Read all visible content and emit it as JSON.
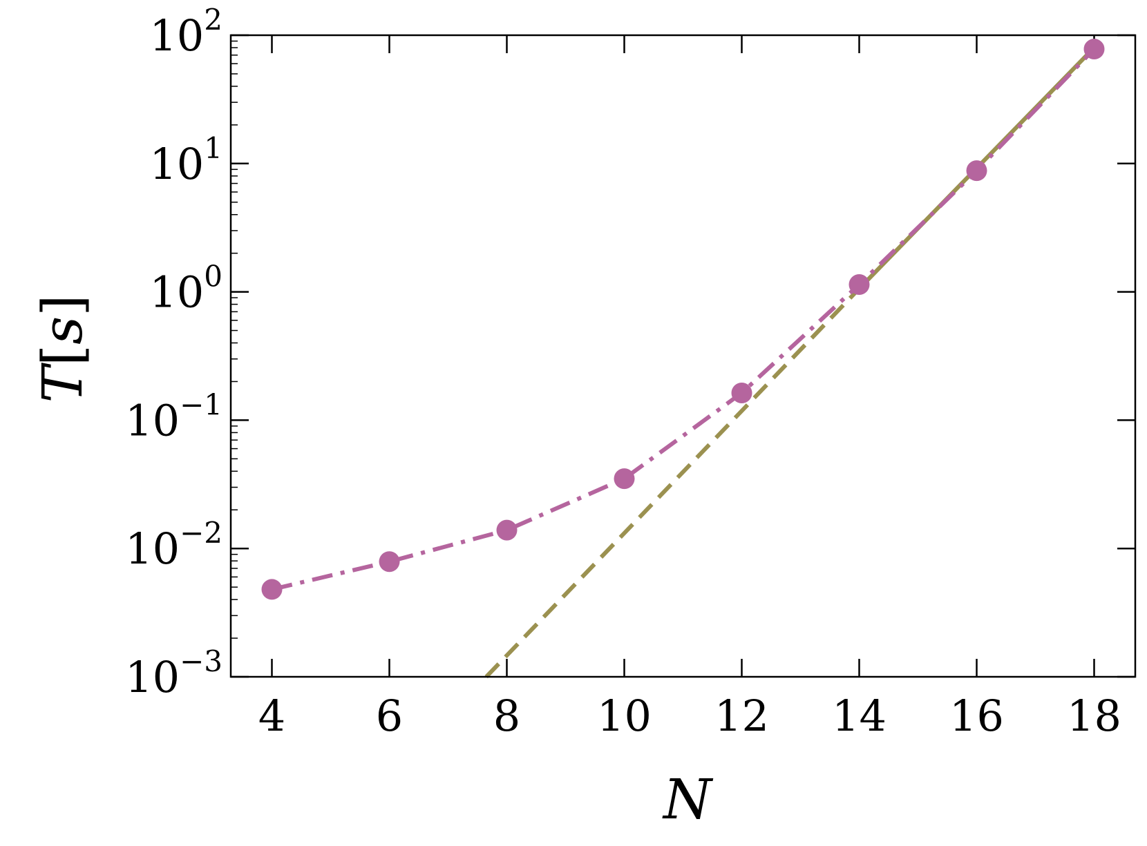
{
  "chart_data": {
    "type": "line",
    "title": "",
    "xlabel": "N",
    "ylabel": {
      "symbol": "T",
      "unit": "s"
    },
    "xlim": [
      3.3,
      18.7
    ],
    "ylim": [
      0.001,
      100
    ],
    "yscale": "log",
    "grid": false,
    "legend": "none",
    "x_ticks": [
      "4",
      "6",
      "8",
      "10",
      "12",
      "14",
      "16",
      "18"
    ],
    "x_tick_values": [
      4,
      6,
      8,
      10,
      12,
      14,
      16,
      18
    ],
    "y_ticks": [
      {
        "value": 0.001,
        "base": "10",
        "exp": "−3"
      },
      {
        "value": 0.01,
        "base": "10",
        "exp": "−2"
      },
      {
        "value": 0.1,
        "base": "10",
        "exp": "−1"
      },
      {
        "value": 1,
        "base": "10",
        "exp": "0"
      },
      {
        "value": 10,
        "base": "10",
        "exp": "1"
      },
      {
        "value": 100,
        "base": "10",
        "exp": "2"
      }
    ],
    "series": [
      {
        "style": "dash-dot with circle markers",
        "color": "#b5659e",
        "x": [
          4,
          6,
          8,
          10,
          12,
          14,
          16,
          18
        ],
        "y": [
          0.0048,
          0.0079,
          0.0139,
          0.035,
          0.163,
          1.14,
          8.8,
          78
        ]
      },
      {
        "style": "fit line (dashed, solid from N=14)",
        "color": "#9b9150",
        "x": [
          7.65,
          14,
          18
        ],
        "y": [
          0.001,
          1.06,
          80
        ],
        "solid_from_x": 14
      }
    ]
  }
}
